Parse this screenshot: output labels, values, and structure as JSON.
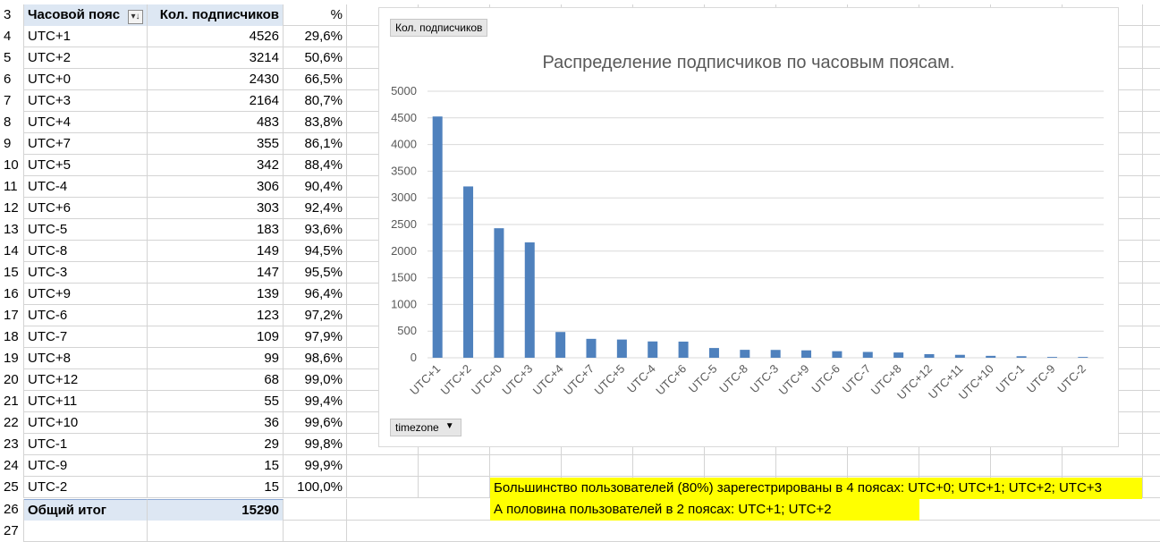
{
  "table": {
    "header": {
      "row": "3",
      "timezone": "Часовой пояс",
      "subscribers": "Кол. подписчиков",
      "percent": "%"
    },
    "rows": [
      {
        "row": "4",
        "tz": "UTC+1",
        "count": "4526",
        "pct": "29,6%"
      },
      {
        "row": "5",
        "tz": "UTC+2",
        "count": "3214",
        "pct": "50,6%"
      },
      {
        "row": "6",
        "tz": "UTC+0",
        "count": "2430",
        "pct": "66,5%"
      },
      {
        "row": "7",
        "tz": "UTC+3",
        "count": "2164",
        "pct": "80,7%"
      },
      {
        "row": "8",
        "tz": "UTC+4",
        "count": "483",
        "pct": "83,8%"
      },
      {
        "row": "9",
        "tz": "UTC+7",
        "count": "355",
        "pct": "86,1%"
      },
      {
        "row": "10",
        "tz": "UTC+5",
        "count": "342",
        "pct": "88,4%"
      },
      {
        "row": "11",
        "tz": "UTC-4",
        "count": "306",
        "pct": "90,4%"
      },
      {
        "row": "12",
        "tz": "UTC+6",
        "count": "303",
        "pct": "92,4%"
      },
      {
        "row": "13",
        "tz": "UTC-5",
        "count": "183",
        "pct": "93,6%"
      },
      {
        "row": "14",
        "tz": "UTC-8",
        "count": "149",
        "pct": "94,5%"
      },
      {
        "row": "15",
        "tz": "UTC-3",
        "count": "147",
        "pct": "95,5%"
      },
      {
        "row": "16",
        "tz": "UTC+9",
        "count": "139",
        "pct": "96,4%"
      },
      {
        "row": "17",
        "tz": "UTC-6",
        "count": "123",
        "pct": "97,2%"
      },
      {
        "row": "18",
        "tz": "UTC-7",
        "count": "109",
        "pct": "97,9%"
      },
      {
        "row": "19",
        "tz": "UTC+8",
        "count": "99",
        "pct": "98,6%"
      },
      {
        "row": "20",
        "tz": "UTC+12",
        "count": "68",
        "pct": "99,0%"
      },
      {
        "row": "21",
        "tz": "UTC+11",
        "count": "55",
        "pct": "99,4%"
      },
      {
        "row": "22",
        "tz": "UTC+10",
        "count": "36",
        "pct": "99,6%"
      },
      {
        "row": "23",
        "tz": "UTC-1",
        "count": "29",
        "pct": "99,8%"
      },
      {
        "row": "24",
        "tz": "UTC-9",
        "count": "15",
        "pct": "99,9%"
      },
      {
        "row": "25",
        "tz": "UTC-2",
        "count": "15",
        "pct": "100,0%"
      }
    ],
    "total": {
      "row": "26",
      "label": "Общий итог",
      "count": "15290"
    },
    "extra_row": "27"
  },
  "chart_buttons": {
    "values_field": "Кол. подписчиков",
    "axis_field": "timezone"
  },
  "notes": {
    "line1": "Большинство пользователей (80%) зарегестрированы в 4 поясах: UTC+0; UTC+1; UTC+2; UTC+3",
    "line2": "А половина пользователей в 2 поясах: UTC+1; UTC+2"
  },
  "colors": {
    "bar": "#4f81bd",
    "header_fill": "#dde7f3",
    "note_fill": "#ffff00"
  },
  "chart_data": {
    "type": "bar",
    "title": "Распределение подписчиков по часовым поясам.",
    "categories": [
      "UTC+1",
      "UTC+2",
      "UTC+0",
      "UTC+3",
      "UTC+4",
      "UTC+7",
      "UTC+5",
      "UTC-4",
      "UTC+6",
      "UTC-5",
      "UTC-8",
      "UTC-3",
      "UTC+9",
      "UTC-6",
      "UTC-7",
      "UTC+8",
      "UTC+12",
      "UTC+11",
      "UTC+10",
      "UTC-1",
      "UTC-9",
      "UTC-2"
    ],
    "values": [
      4526,
      3214,
      2430,
      2164,
      483,
      355,
      342,
      306,
      303,
      183,
      149,
      147,
      139,
      123,
      109,
      99,
      68,
      55,
      36,
      29,
      15,
      15
    ],
    "yticks": [
      "0",
      "500",
      "1000",
      "1500",
      "2000",
      "2500",
      "3000",
      "3500",
      "4000",
      "4500",
      "5000"
    ],
    "ylim": [
      0,
      5000
    ],
    "grid": true,
    "legend": "none"
  }
}
